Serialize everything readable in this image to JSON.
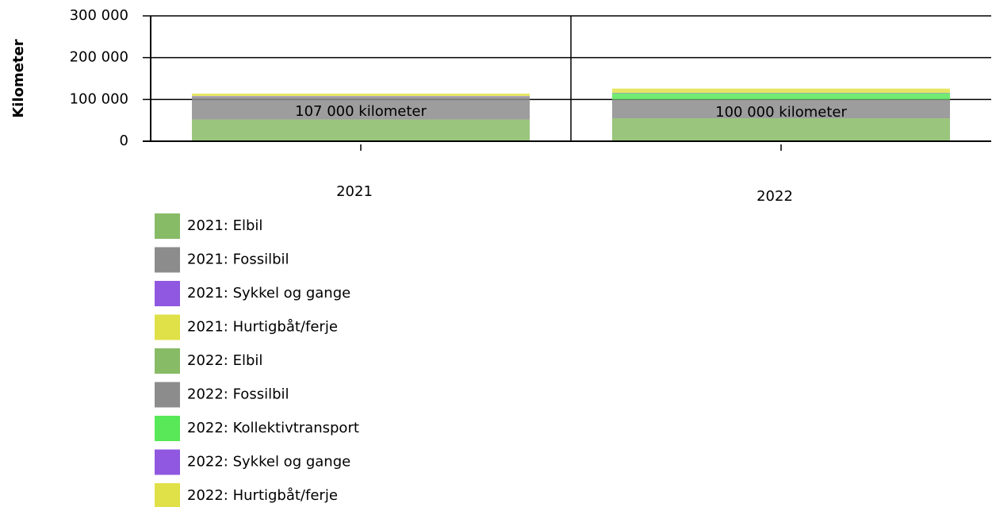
{
  "chart_data": {
    "type": "stacked_bar",
    "y_label": "Kilometer",
    "categories": [
      "2021",
      "2022"
    ],
    "series": [
      {
        "name": "2021: Elbil",
        "color": "#88bb66",
        "values": [
          52000,
          null
        ]
      },
      {
        "name": "2021: Fossilbil",
        "color": "#8c8c8c",
        "values": [
          55000,
          null
        ]
      },
      {
        "name": "2021: Sykkel og gange",
        "color": "#9058e0",
        "values": [
          1000,
          null
        ]
      },
      {
        "name": "2021: Hurtigbåt/ferje",
        "color": "#e0e048",
        "values": [
          6000,
          null
        ]
      },
      {
        "name": "2022: Elbil",
        "color": "#88bb66",
        "values": [
          null,
          55000
        ]
      },
      {
        "name": "2022: Fossilbil",
        "color": "#8c8c8c",
        "values": [
          null,
          45000
        ]
      },
      {
        "name": "2022: Kollektivtransport",
        "color": "#58e858",
        "values": [
          null,
          15000
        ]
      },
      {
        "name": "2022: Sykkel og gange",
        "color": "#9058e0",
        "values": [
          null,
          1000
        ]
      },
      {
        "name": "2022: Hurtigbåt/ferje",
        "color": "#e0e048",
        "values": [
          null,
          10000
        ]
      }
    ],
    "annotations": [
      "107 000 kilometer",
      "100 000 kilometer"
    ],
    "ylim": [
      0,
      300000
    ],
    "yticks": [
      0,
      {
        "value": 100000,
        "label": "100 000"
      },
      {
        "value": 200000,
        "label": "200 000"
      },
      {
        "value": 300000,
        "label": "300 000"
      }
    ],
    "grid": true
  }
}
